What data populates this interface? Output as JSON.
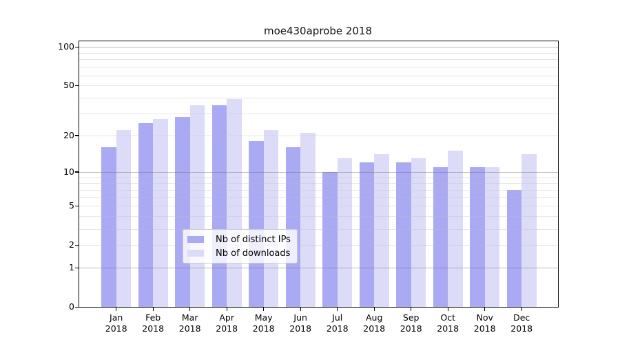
{
  "chart_data": {
    "type": "bar",
    "title": "moe430aprobe 2018",
    "categories": [
      "Jan",
      "Feb",
      "Mar",
      "Apr",
      "May",
      "Jun",
      "Jul",
      "Aug",
      "Sep",
      "Oct",
      "Nov",
      "Dec"
    ],
    "x_tick_year": "2018",
    "series": [
      {
        "key": "distinct-ips",
        "name": "Nb of distinct IPs",
        "color": "#a9a9f4",
        "values": [
          16,
          25,
          28,
          35,
          18,
          16,
          10,
          12,
          12,
          11,
          11,
          7
        ]
      },
      {
        "key": "downloads",
        "name": "Nb of downloads",
        "color": "#dcdcf9",
        "values": [
          22,
          27,
          35,
          39,
          22,
          21,
          13,
          14,
          13,
          15,
          11,
          14
        ]
      }
    ],
    "xlabel": "",
    "ylabel": "",
    "y_scale": "log10(1+value)",
    "ylim": [
      0,
      112
    ],
    "y_ticks": [
      100,
      50,
      20,
      10,
      5,
      2,
      1,
      0
    ],
    "y_major_gridlines": [
      1,
      10,
      100
    ],
    "y_minor_gridlines": [
      2,
      3,
      4,
      5,
      6,
      7,
      8,
      9,
      20,
      30,
      40,
      50,
      60,
      70,
      80,
      90
    ],
    "grid": true,
    "legend_position": "lower center"
  },
  "colors": {
    "bar_distinct_ips": "#a9a9f4",
    "bar_downloads": "#dcdcf9",
    "major_gridline": "#bcbcbc",
    "minor_gridline": "#e7e7e7",
    "axis": "#000000",
    "background": "#ffffff"
  }
}
